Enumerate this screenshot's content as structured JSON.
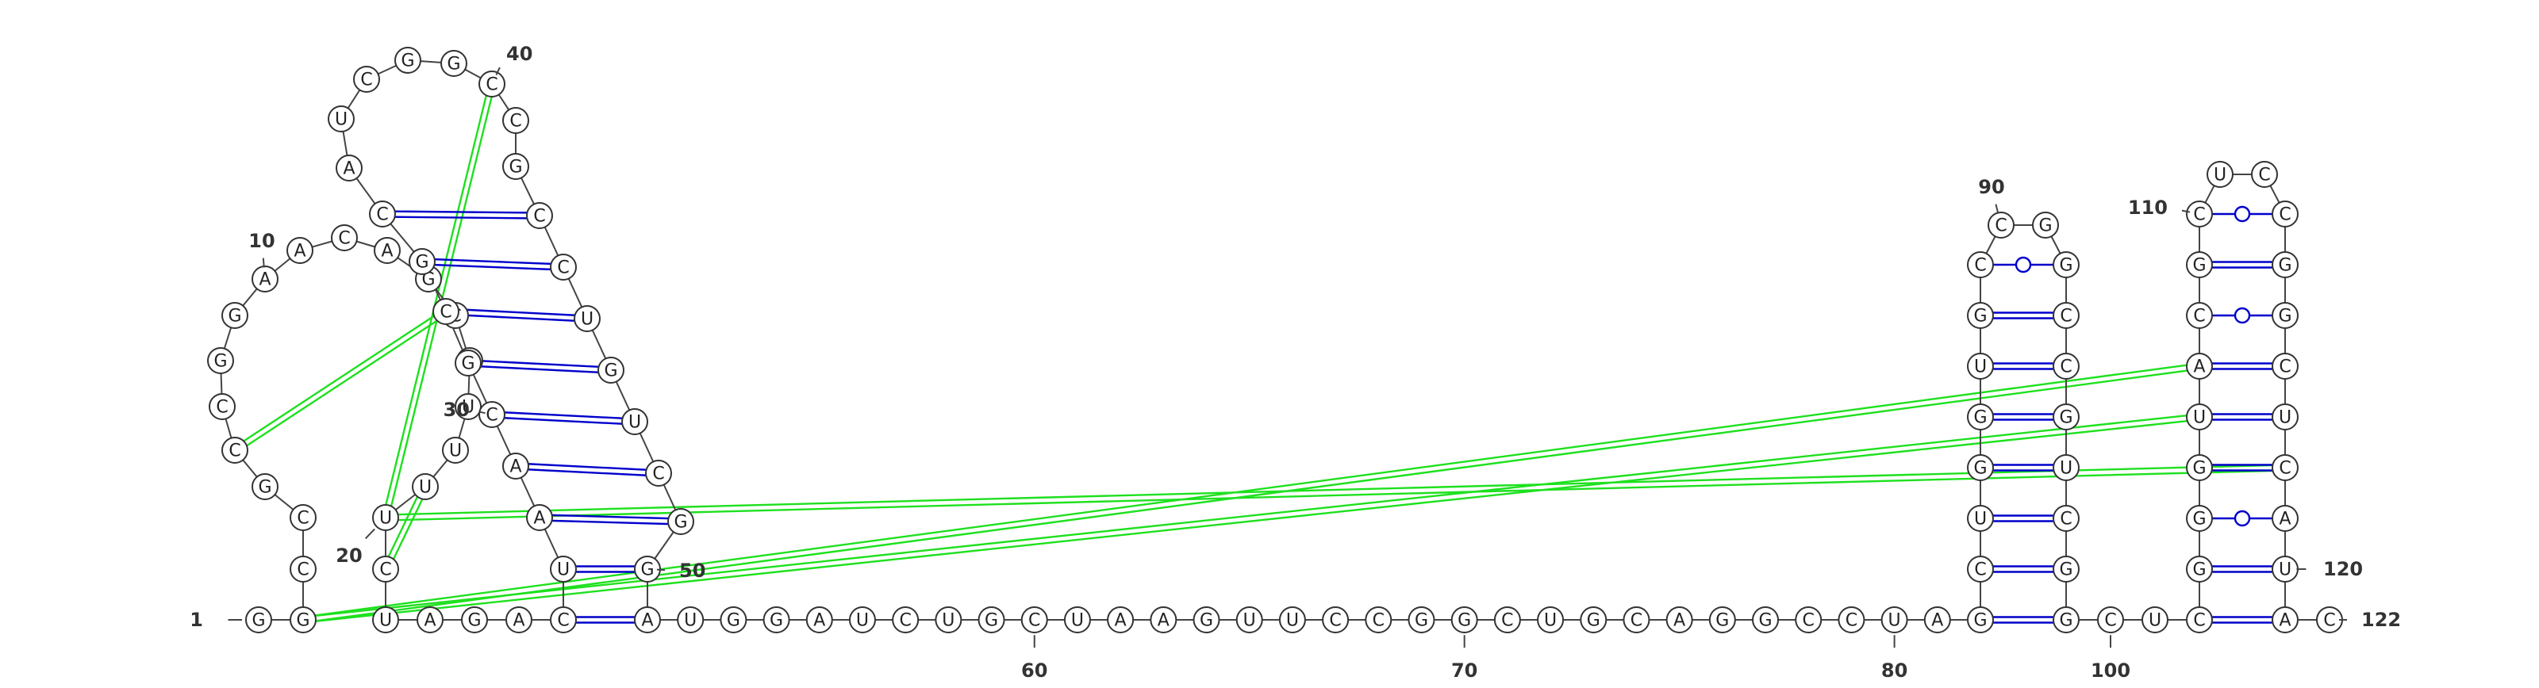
{
  "diagram": {
    "sequence": "GGCCGCCGGAACAGCCUUUUCUAGACUAACGCGCAUCGGCCGCCUGUCGGAUGGAUCUGCUAAGUUCCGGCUGCAGGCCUAGCUGGUGCCGGCCGUCGGCUCGGGUACGCUCCGGCUCAUAC",
    "index_labels": [
      {
        "text": "1",
        "n": 1
      },
      {
        "text": "10",
        "n": 10
      },
      {
        "text": "20",
        "n": 20
      },
      {
        "text": "30",
        "n": 30
      },
      {
        "text": "40",
        "n": 40
      },
      {
        "text": "50",
        "n": 50
      },
      {
        "text": "60",
        "n": 60
      },
      {
        "text": "70",
        "n": 70
      },
      {
        "text": "80",
        "n": 80
      },
      {
        "text": "90",
        "n": 90
      },
      {
        "text": "100",
        "n": 100
      },
      {
        "text": "110",
        "n": 110
      },
      {
        "text": "120",
        "n": 120
      },
      {
        "text": "122",
        "n": 122
      }
    ],
    "colors": {
      "canonical_pair": "#0000cc",
      "gu_pair": "#0000cc",
      "pseudoknot": "#1ee01e",
      "backbone": "#444444"
    }
  }
}
